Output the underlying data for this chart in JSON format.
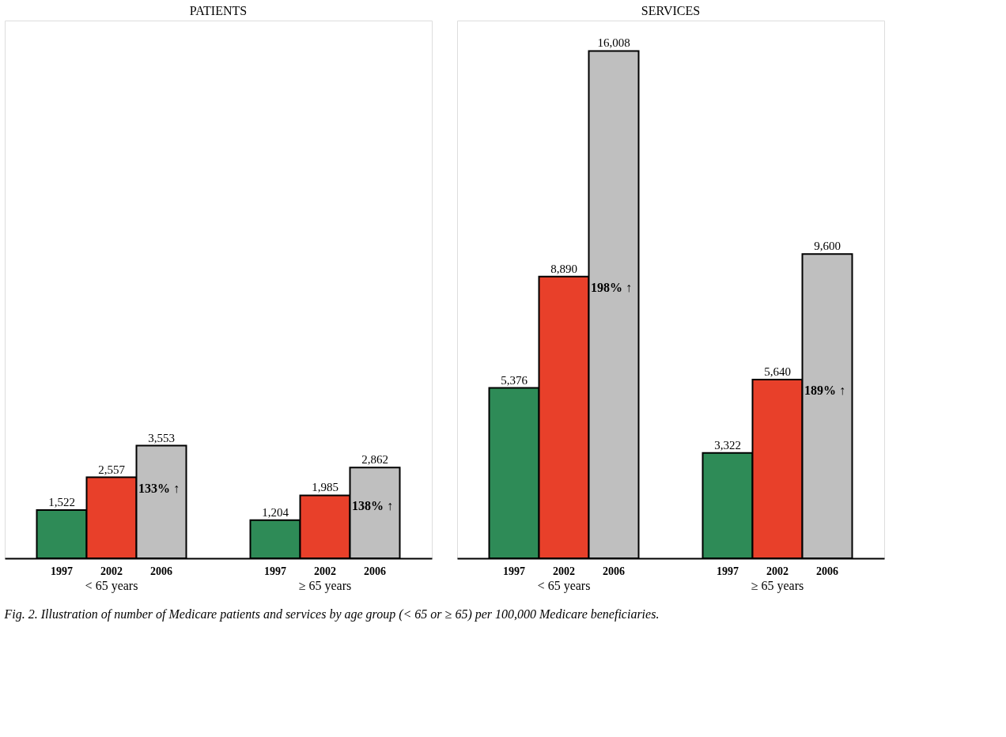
{
  "chart_data": [
    {
      "type": "bar",
      "title": "PATIENTS",
      "categories": [
        "< 65 years",
        "≥ 65 years"
      ],
      "series": [
        {
          "name": "1997",
          "color": "#2e8b57",
          "values": [
            1522,
            1204
          ],
          "value_labels": [
            "1,522",
            "1,204"
          ]
        },
        {
          "name": "2002",
          "color": "#e8402a",
          "values": [
            2557,
            1985
          ],
          "value_labels": [
            "2,557",
            "1,985"
          ]
        },
        {
          "name": "2006",
          "color": "#bfbfbf",
          "values": [
            3553,
            2862
          ],
          "value_labels": [
            "3,553",
            "2,862"
          ]
        }
      ],
      "legend": false,
      "grid": false,
      "annotations": [
        {
          "text": "133% ↑",
          "x": "< 65 years",
          "y": 2557
        },
        {
          "text": "138% ↑",
          "x": "≥ 65 years",
          "y": 1985
        }
      ]
    },
    {
      "type": "bar",
      "title": "SERVICES",
      "categories": [
        "< 65 years",
        "≥ 65 years"
      ],
      "series": [
        {
          "name": "1997",
          "color": "#2e8b57",
          "values": [
            5376,
            3322
          ],
          "value_labels": [
            "5,376",
            "3,322"
          ]
        },
        {
          "name": "2002",
          "color": "#e8402a",
          "values": [
            8890,
            5640
          ],
          "value_labels": [
            "8,890",
            "5,640"
          ]
        },
        {
          "name": "2006",
          "color": "#bfbfbf",
          "values": [
            16008,
            9600
          ],
          "value_labels": [
            "16,008",
            "9,600"
          ]
        }
      ],
      "legend": false,
      "grid": false,
      "annotations": [
        {
          "text": "198% ↑",
          "x": "< 65 years",
          "y": 8890
        },
        {
          "text": "189% ↑",
          "x": "≥ 65 years",
          "y": 5640
        },
        "Fig. 2. Illustration of number of Medicare patients and services by age group (< 65 or ≥ 65) per 100,000 Medicare beneficiaries."
      ]
    }
  ]
}
